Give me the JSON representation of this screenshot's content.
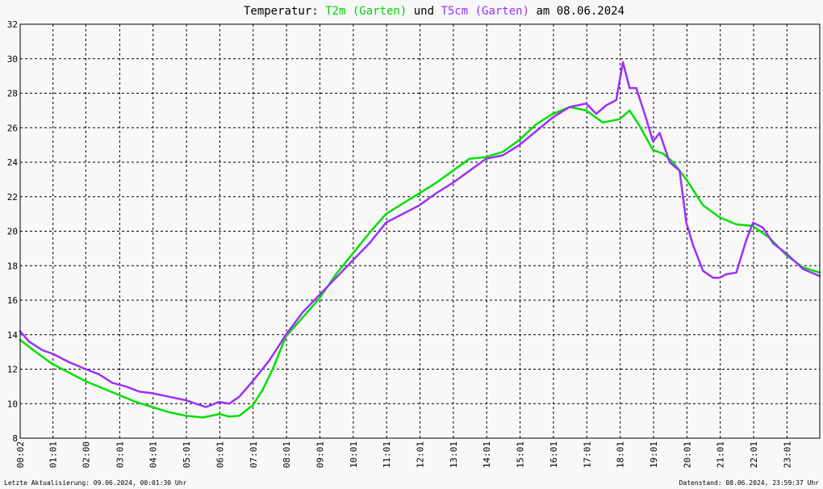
{
  "footer": {
    "left": "Letzte Aktualisierung: 09.06.2024, 00:01:30 Uhr",
    "right": "Datenstand: 08.06.2024, 23:59:37 Uhr"
  },
  "chart_data": {
    "type": "line",
    "title_parts": {
      "prefix": "Temperatur: ",
      "series1": "T2m (Garten)",
      "middle": " und ",
      "series2": "T5cm (Garten)",
      "suffix": " am 08.06.2024"
    },
    "xlabel": "",
    "ylabel": "",
    "xlim": [
      0.033,
      24.0
    ],
    "ylim": [
      8,
      32
    ],
    "y_ticks": [
      "8",
      "10",
      "12",
      "14",
      "16",
      "18",
      "20",
      "22",
      "24",
      "26",
      "28",
      "30",
      "32"
    ],
    "x_ticks": [
      {
        "x": 0.033,
        "label": "00:02"
      },
      {
        "x": 1.017,
        "label": "01:01"
      },
      {
        "x": 2.0,
        "label": "02:00"
      },
      {
        "x": 3.017,
        "label": "03:01"
      },
      {
        "x": 4.017,
        "label": "04:01"
      },
      {
        "x": 5.017,
        "label": "05:01"
      },
      {
        "x": 6.017,
        "label": "06:01"
      },
      {
        "x": 7.017,
        "label": "07:01"
      },
      {
        "x": 8.017,
        "label": "08:01"
      },
      {
        "x": 9.017,
        "label": "09:01"
      },
      {
        "x": 10.017,
        "label": "10:01"
      },
      {
        "x": 11.017,
        "label": "11:01"
      },
      {
        "x": 12.017,
        "label": "12:01"
      },
      {
        "x": 13.017,
        "label": "13:01"
      },
      {
        "x": 14.017,
        "label": "14:01"
      },
      {
        "x": 15.017,
        "label": "15:01"
      },
      {
        "x": 16.017,
        "label": "16:01"
      },
      {
        "x": 17.017,
        "label": "17:01"
      },
      {
        "x": 18.017,
        "label": "18:01"
      },
      {
        "x": 19.017,
        "label": "19:01"
      },
      {
        "x": 20.017,
        "label": "20:01"
      },
      {
        "x": 21.017,
        "label": "21:01"
      },
      {
        "x": 22.017,
        "label": "22:01"
      },
      {
        "x": 23.017,
        "label": "23:01"
      }
    ],
    "grid": true,
    "colors": {
      "T2m": "#00e000",
      "T5cm": "#9b30ff",
      "background": "#f8f8f8",
      "grid": "#000000"
    },
    "series": [
      {
        "name": "T2m (Garten)",
        "x": [
          0.03,
          0.5,
          1.0,
          1.5,
          2.0,
          2.5,
          3.0,
          3.5,
          4.0,
          4.5,
          5.0,
          5.5,
          6.0,
          6.3,
          6.6,
          7.0,
          7.3,
          7.6,
          8.0,
          8.5,
          9.0,
          9.5,
          10.0,
          10.5,
          11.0,
          11.5,
          12.0,
          12.5,
          13.0,
          13.5,
          14.0,
          14.5,
          15.0,
          15.5,
          16.0,
          16.5,
          17.0,
          17.5,
          18.0,
          18.3,
          18.6,
          19.0,
          19.3,
          19.6,
          20.0,
          20.5,
          21.0,
          21.5,
          22.0,
          22.5,
          23.0,
          23.5,
          24.0
        ],
        "y": [
          13.7,
          13.0,
          12.3,
          11.8,
          11.3,
          10.9,
          10.5,
          10.1,
          9.8,
          9.5,
          9.3,
          9.2,
          9.4,
          9.25,
          9.3,
          9.9,
          10.8,
          12.0,
          13.9,
          15.0,
          16.1,
          17.5,
          18.7,
          19.9,
          21.0,
          21.6,
          22.2,
          22.8,
          23.5,
          24.2,
          24.3,
          24.6,
          25.3,
          26.2,
          26.8,
          27.2,
          27.0,
          26.3,
          26.5,
          27.0,
          26.1,
          24.7,
          24.5,
          24.0,
          23.0,
          21.5,
          20.8,
          20.4,
          20.3,
          19.6,
          18.6,
          17.9,
          17.6
        ]
      },
      {
        "name": "T5cm (Garten)",
        "x": [
          0.03,
          0.3,
          0.7,
          1.0,
          1.5,
          2.0,
          2.4,
          2.8,
          3.2,
          3.6,
          4.0,
          4.5,
          5.0,
          5.3,
          5.6,
          6.0,
          6.3,
          6.6,
          7.0,
          7.5,
          8.0,
          8.5,
          9.0,
          9.5,
          10.0,
          10.5,
          11.0,
          11.5,
          12.0,
          12.5,
          13.0,
          13.5,
          14.0,
          14.5,
          15.0,
          15.5,
          16.0,
          16.5,
          17.0,
          17.3,
          17.6,
          17.9,
          18.1,
          18.3,
          18.5,
          18.8,
          19.0,
          19.2,
          19.5,
          19.8,
          20.0,
          20.2,
          20.5,
          20.8,
          21.0,
          21.2,
          21.5,
          21.8,
          22.0,
          22.3,
          22.6,
          23.0,
          23.5,
          24.0
        ],
        "y": [
          14.2,
          13.6,
          13.1,
          12.9,
          12.4,
          12.0,
          11.7,
          11.2,
          11.0,
          10.7,
          10.6,
          10.4,
          10.2,
          10.0,
          9.8,
          10.1,
          10.0,
          10.4,
          11.3,
          12.5,
          14.0,
          15.3,
          16.3,
          17.3,
          18.3,
          19.3,
          20.5,
          21.0,
          21.5,
          22.2,
          22.8,
          23.5,
          24.2,
          24.4,
          25.0,
          25.8,
          26.6,
          27.2,
          27.4,
          26.8,
          27.3,
          27.6,
          29.8,
          28.3,
          28.3,
          26.5,
          25.2,
          25.7,
          24.0,
          23.5,
          20.5,
          19.2,
          17.7,
          17.3,
          17.3,
          17.5,
          17.6,
          19.5,
          20.5,
          20.2,
          19.3,
          18.7,
          17.8,
          17.4
        ]
      }
    ]
  }
}
